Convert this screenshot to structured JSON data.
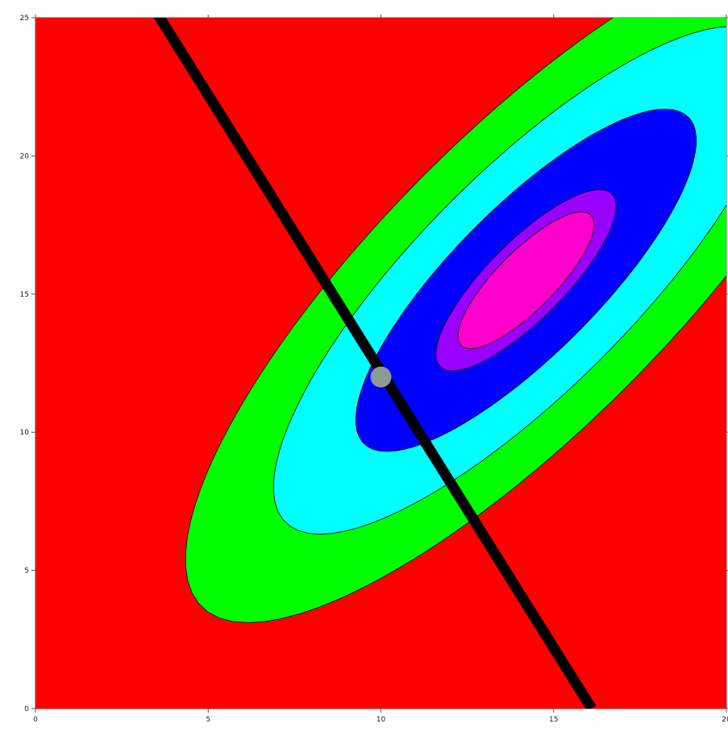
{
  "chart_data": {
    "type": "contour",
    "title": "",
    "xlabel": "",
    "ylabel": "",
    "xlim": [
      0,
      20
    ],
    "ylim": [
      0,
      25
    ],
    "x_ticks": [
      {
        "value": 0,
        "label": "0"
      },
      {
        "value": 5,
        "label": "5"
      },
      {
        "value": 10,
        "label": "10"
      },
      {
        "value": 15,
        "label": "15"
      },
      {
        "value": 20,
        "label": "20"
      }
    ],
    "y_ticks": [
      {
        "value": 0,
        "label": "0"
      },
      {
        "value": 5,
        "label": "5"
      },
      {
        "value": 10,
        "label": "10"
      },
      {
        "value": 15,
        "label": "15"
      },
      {
        "value": 20,
        "label": "20"
      },
      {
        "value": 25,
        "label": "25"
      }
    ],
    "contour_center": [
      14.2,
      15.5
    ],
    "contour_shape": [
      [
        0.0308,
        -0.02
      ],
      [
        -0.02,
        0.0195
      ]
    ],
    "contour_levels": [
      {
        "level": 1.0,
        "color": "#00ff00"
      },
      {
        "level": 0.55,
        "color": "#00ffff"
      },
      {
        "level": 0.25,
        "color": "#0000ff"
      },
      {
        "level": 0.07,
        "color": "#9900ff"
      },
      {
        "level": 0.04,
        "color": "#ff00cc"
      }
    ],
    "background_color": "#ff0000",
    "line": {
      "x": [
        3.5,
        16.1
      ],
      "y": [
        25.2,
        0
      ],
      "color": "#000000"
    },
    "point": {
      "x": 10,
      "y": 12,
      "color": "#8c9a94"
    }
  }
}
